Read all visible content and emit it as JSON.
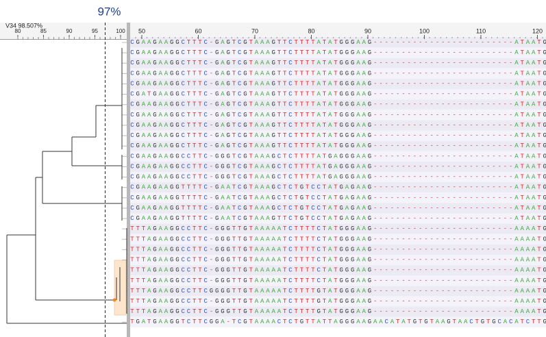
{
  "tree": {
    "threshold": {
      "value": 97,
      "label": "97%"
    },
    "header_label": "V34  98.507%",
    "scale": [
      80,
      85,
      90,
      95,
      100
    ]
  },
  "alignment": {
    "ruler": [
      50,
      60,
      70,
      80,
      90,
      100,
      110,
      120
    ],
    "rows": [
      "CGAAGAAGGCTTTC-GAGTCGTAAAGTTCTTTTATATGGGAAG-------------------------ATAATG",
      "CGAAGAAGGCTTTC-GAGTCGTAAAGTTCTTTTATATGGGAAG-------------------------ATAATG",
      "CGAAGAAGGCTTTC-GAGTCGTAAAGTTCTTTTATATGGGAAG-------------------------ATAATG",
      "CGAAGAAGGCTTTC-GAGTCGTAAAGTTCTTTTATATGGGAAG-------------------------ATAATG",
      "CGAAGAAGGCTTTC-GAGTCGTAAAGTTCTTTTATATGGGAAG-------------------------ATAATG",
      "CGATGAAGGCTTTC-GAGTCGTAAAGTTCTTTTATATGGGAAG-------------------------ATAATG",
      "CGAAGAAGGCTTTC-GAGTCGTAAAGTTCTTTTATATGGGAAG-------------------------ATAATG",
      "CGAAGAAGGCTTTC-GAGTCGTAAAGTTCTTTTATATGGGAAG-------------------------ATAATG",
      "CGAAGAAGGCTTTC-GAGTCGTAAAGTTCTTTTATATGGGAAG-------------------------ATAATG",
      "CGAAGAAGGCTTTC-GAGTCGTAAAGTTCTTTTATATGGGAAG-------------------------ATAATG",
      "CGAAGAAGGCTTTC-GAGTCGTAAAGTTCTTTTATATGGGAAG-------------------------ATAATG",
      "CGAAGAAGGCCTTC-GGGTCGTAAAGCTCTTTTATGAGGGAAG-------------------------ATAATG",
      "CGAAGAAGGCCTTC-GGGTCGTAAAGCTCTTTTATGAGGGAAG-------------------------ATAATG",
      "CGAAGAAGGCCTTC-GGGTCGTAAAGCTCTTTTATGAGGGAAG-------------------------ATAATG",
      "CGAAGAAGGTTTTC-GAATCGTAAAGCTCTGTCCTATGAGAAG-------------------------ATAATG",
      "CGAAGAAGGTTTTC-GAATCGTAAAGCTCTGTCCTATGAGAAG-------------------------ATAATG",
      "CGAAGAAGGTTTTC-GAATCGTAAAGCTCTGTCCTATGAGAAG-------------------------ATAATG",
      "CGAAGAAGGTTTTC-GAATCGTAAAGTTCTGTCCTATGAGAAG-------------------------ATAATG",
      "TTTAGAAGGCCTTC-GGGTTGTAAAAATCTTTTCTATGGGAAG-------------------------AAAATG",
      "TTTAGAAGGCCTTC-GGGTTGTAAAAATCTTTTCTATGGGAAG-------------------------AAAATG",
      "TTTAGAAGGCCTTC-GGGTTGTAAAAATCTTTTCTATGGGAAG-------------------------AAAATG",
      "TTTAGAAGGCCTTC-GGGTTGTAAAAATCTTTTCTATGGGAAG-------------------------AAAATG",
      "TTTAGAAGGCCTTC-GGGTTGTAAAAATCTTTTCTATGGGAAG-------------------------AAAATG",
      "TTTAGAAGGCCTTC-GGGTTGTAAAAATCTTTTCTATGGGAAG-------------------------AAAATG",
      "TTTAGAAGGCCTTCGGGGTTGTAAAAATCTTTTGTATGGGAAG-------------------------AAAATG",
      "TTTAGAAGGCCTTC-GGGTTGTAAAAATCTTTTGTATGGGAAG-------------------------AAAATG",
      "TTTAGAAGGCCTTC-GGGTTGTAAAAATCTTTTGTATGGGAAG-------------------------AAAATG",
      "TGATGAAGGTCTTCGGA-TCGTAAAACTCTGTTATTAGGGAAGAACATATGTGTAAGTAACTGTGCACATCTTG"
    ]
  }
}
